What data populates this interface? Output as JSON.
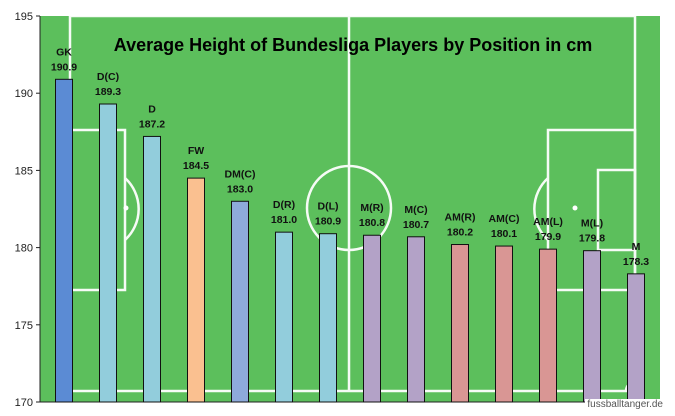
{
  "chart_data": {
    "type": "bar",
    "title": "Average Height of Bundesliga Players by Position in cm",
    "categories": [
      "GK",
      "D(C)",
      "D",
      "FW",
      "DM(C)",
      "D(R)",
      "D(L)",
      "M(R)",
      "M(C)",
      "AM(R)",
      "AM(C)",
      "AM(L)",
      "M(L)",
      "M"
    ],
    "values": [
      190.9,
      189.3,
      187.2,
      184.5,
      183.0,
      181.0,
      180.9,
      180.8,
      180.7,
      180.2,
      180.1,
      179.9,
      179.8,
      178.3
    ],
    "value_labels": [
      "190.9",
      "189.3",
      "187.2",
      "184.5",
      "183.0",
      "181.0",
      "180.9",
      "180.8",
      "180.7",
      "180.2",
      "180.1",
      "179.9",
      "179.8",
      "178.3"
    ],
    "colors": [
      "#5b8bd4",
      "#92cddc",
      "#92cddc",
      "#fac090",
      "#8eaadb",
      "#92cddc",
      "#92cddc",
      "#b3a2c7",
      "#b3a2c7",
      "#d99694",
      "#d99694",
      "#d99694",
      "#b3a2c7",
      "#b3a2c7"
    ],
    "ylim": [
      170,
      195
    ],
    "yticks": [
      "170",
      "175",
      "180",
      "185",
      "190",
      "195"
    ],
    "xlabel": "",
    "ylabel": "",
    "grid": false,
    "background": "#5cbf5c"
  },
  "watermark": "fussballtanger.de"
}
